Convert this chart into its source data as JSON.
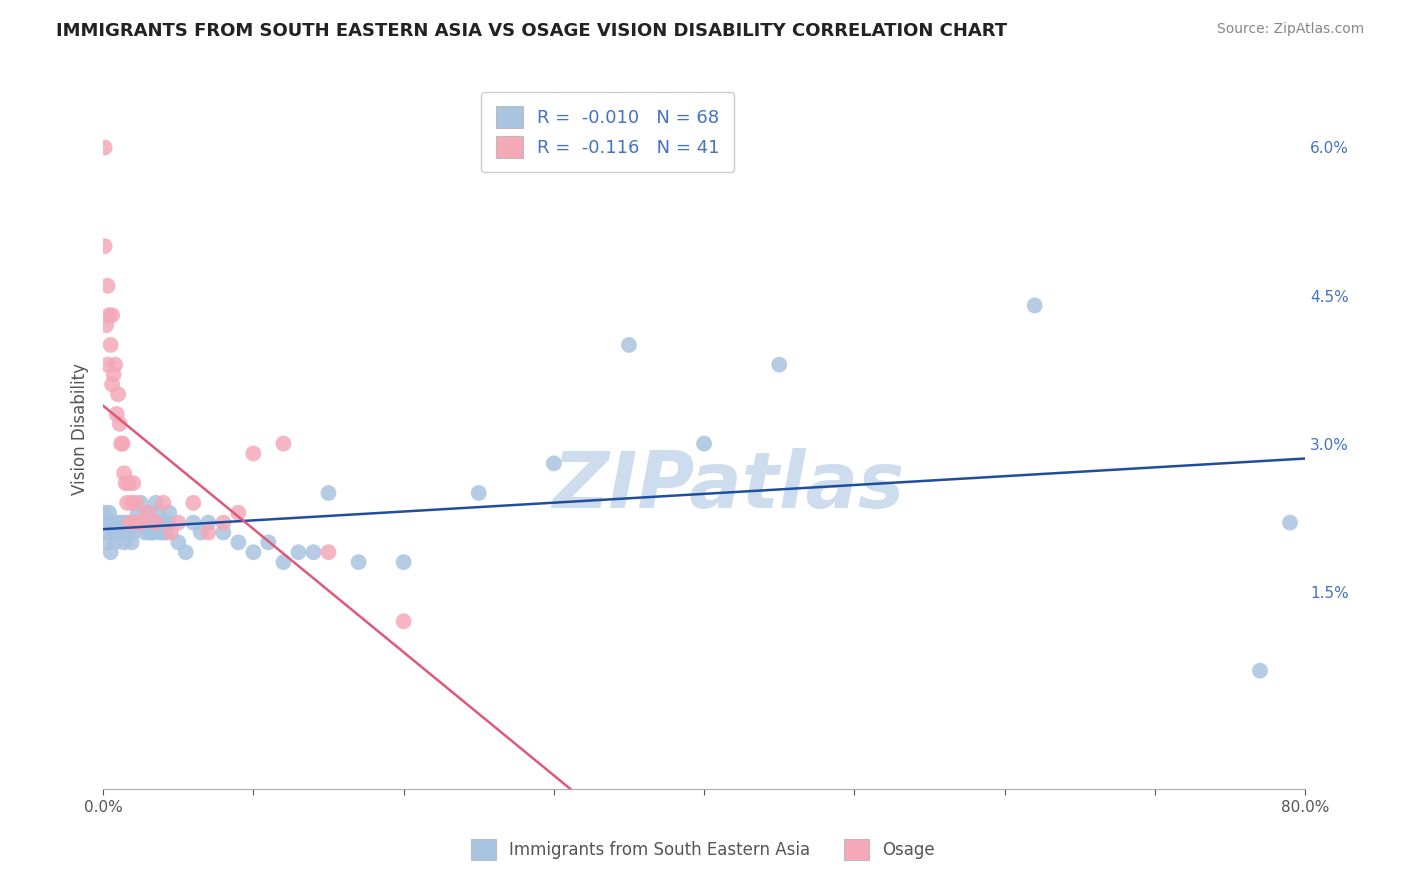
{
  "title": "IMMIGRANTS FROM SOUTH EASTERN ASIA VS OSAGE VISION DISABILITY CORRELATION CHART",
  "source": "Source: ZipAtlas.com",
  "ylabel": "Vision Disability",
  "x_legend1": "Immigrants from South Eastern Asia",
  "x_legend2": "Osage",
  "legend_r1": "R =  -0.010",
  "legend_n1": "N = 68",
  "legend_r2": "R =  -0.116",
  "legend_n2": "N = 41",
  "xlim": [
    0.0,
    0.8
  ],
  "ylim": [
    -0.005,
    0.068
  ],
  "x_ticks": [
    0.0,
    0.1,
    0.2,
    0.3,
    0.4,
    0.5,
    0.6,
    0.7,
    0.8
  ],
  "x_tick_labels": [
    "0.0%",
    "",
    "",
    "",
    "",
    "",
    "",
    "",
    "80.0%"
  ],
  "y_ticks_right": [
    0.015,
    0.03,
    0.045,
    0.06
  ],
  "y_tick_labels_right": [
    "1.5%",
    "3.0%",
    "4.5%",
    "6.0%"
  ],
  "color_blue": "#a8c4e0",
  "color_pink": "#f4a8b8",
  "color_blue_line": "#1f4e9e",
  "color_pink_line": "#e05878",
  "watermark": "ZIPatlas",
  "watermark_color": "#cddded",
  "background_color": "#ffffff",
  "grid_color": "#dddddd",
  "blue_scatter_x": [
    0.001,
    0.001,
    0.002,
    0.003,
    0.004,
    0.005,
    0.006,
    0.007,
    0.008,
    0.009,
    0.01,
    0.011,
    0.012,
    0.013,
    0.014,
    0.015,
    0.016,
    0.017,
    0.018,
    0.019,
    0.02,
    0.021,
    0.022,
    0.023,
    0.024,
    0.025,
    0.026,
    0.027,
    0.028,
    0.029,
    0.03,
    0.031,
    0.032,
    0.033,
    0.034,
    0.035,
    0.036,
    0.037,
    0.038,
    0.039,
    0.04,
    0.041,
    0.042,
    0.043,
    0.044,
    0.05,
    0.055,
    0.06,
    0.065,
    0.07,
    0.08,
    0.09,
    0.1,
    0.11,
    0.12,
    0.13,
    0.14,
    0.15,
    0.17,
    0.2,
    0.25,
    0.3,
    0.35,
    0.4,
    0.45,
    0.62,
    0.77,
    0.79
  ],
  "blue_scatter_y": [
    0.021,
    0.023,
    0.022,
    0.02,
    0.023,
    0.019,
    0.022,
    0.021,
    0.02,
    0.022,
    0.021,
    0.021,
    0.022,
    0.021,
    0.02,
    0.022,
    0.021,
    0.021,
    0.022,
    0.02,
    0.021,
    0.022,
    0.022,
    0.023,
    0.022,
    0.024,
    0.022,
    0.022,
    0.021,
    0.022,
    0.023,
    0.021,
    0.021,
    0.022,
    0.021,
    0.024,
    0.023,
    0.022,
    0.021,
    0.022,
    0.021,
    0.022,
    0.021,
    0.022,
    0.023,
    0.02,
    0.019,
    0.022,
    0.021,
    0.022,
    0.021,
    0.02,
    0.019,
    0.02,
    0.018,
    0.019,
    0.019,
    0.025,
    0.018,
    0.018,
    0.025,
    0.028,
    0.04,
    0.03,
    0.038,
    0.044,
    0.007,
    0.022
  ],
  "pink_scatter_x": [
    0.001,
    0.001,
    0.002,
    0.003,
    0.003,
    0.004,
    0.005,
    0.006,
    0.006,
    0.007,
    0.008,
    0.009,
    0.01,
    0.011,
    0.012,
    0.013,
    0.014,
    0.015,
    0.016,
    0.017,
    0.018,
    0.019,
    0.02,
    0.021,
    0.022,
    0.023,
    0.024,
    0.025,
    0.03,
    0.035,
    0.04,
    0.045,
    0.05,
    0.06,
    0.07,
    0.08,
    0.09,
    0.1,
    0.12,
    0.15,
    0.2
  ],
  "pink_scatter_y": [
    0.06,
    0.05,
    0.042,
    0.046,
    0.038,
    0.043,
    0.04,
    0.036,
    0.043,
    0.037,
    0.038,
    0.033,
    0.035,
    0.032,
    0.03,
    0.03,
    0.027,
    0.026,
    0.024,
    0.026,
    0.022,
    0.024,
    0.026,
    0.022,
    0.024,
    0.022,
    0.022,
    0.022,
    0.023,
    0.022,
    0.024,
    0.021,
    0.022,
    0.024,
    0.021,
    0.022,
    0.023,
    0.029,
    0.03,
    0.019,
    0.012
  ]
}
